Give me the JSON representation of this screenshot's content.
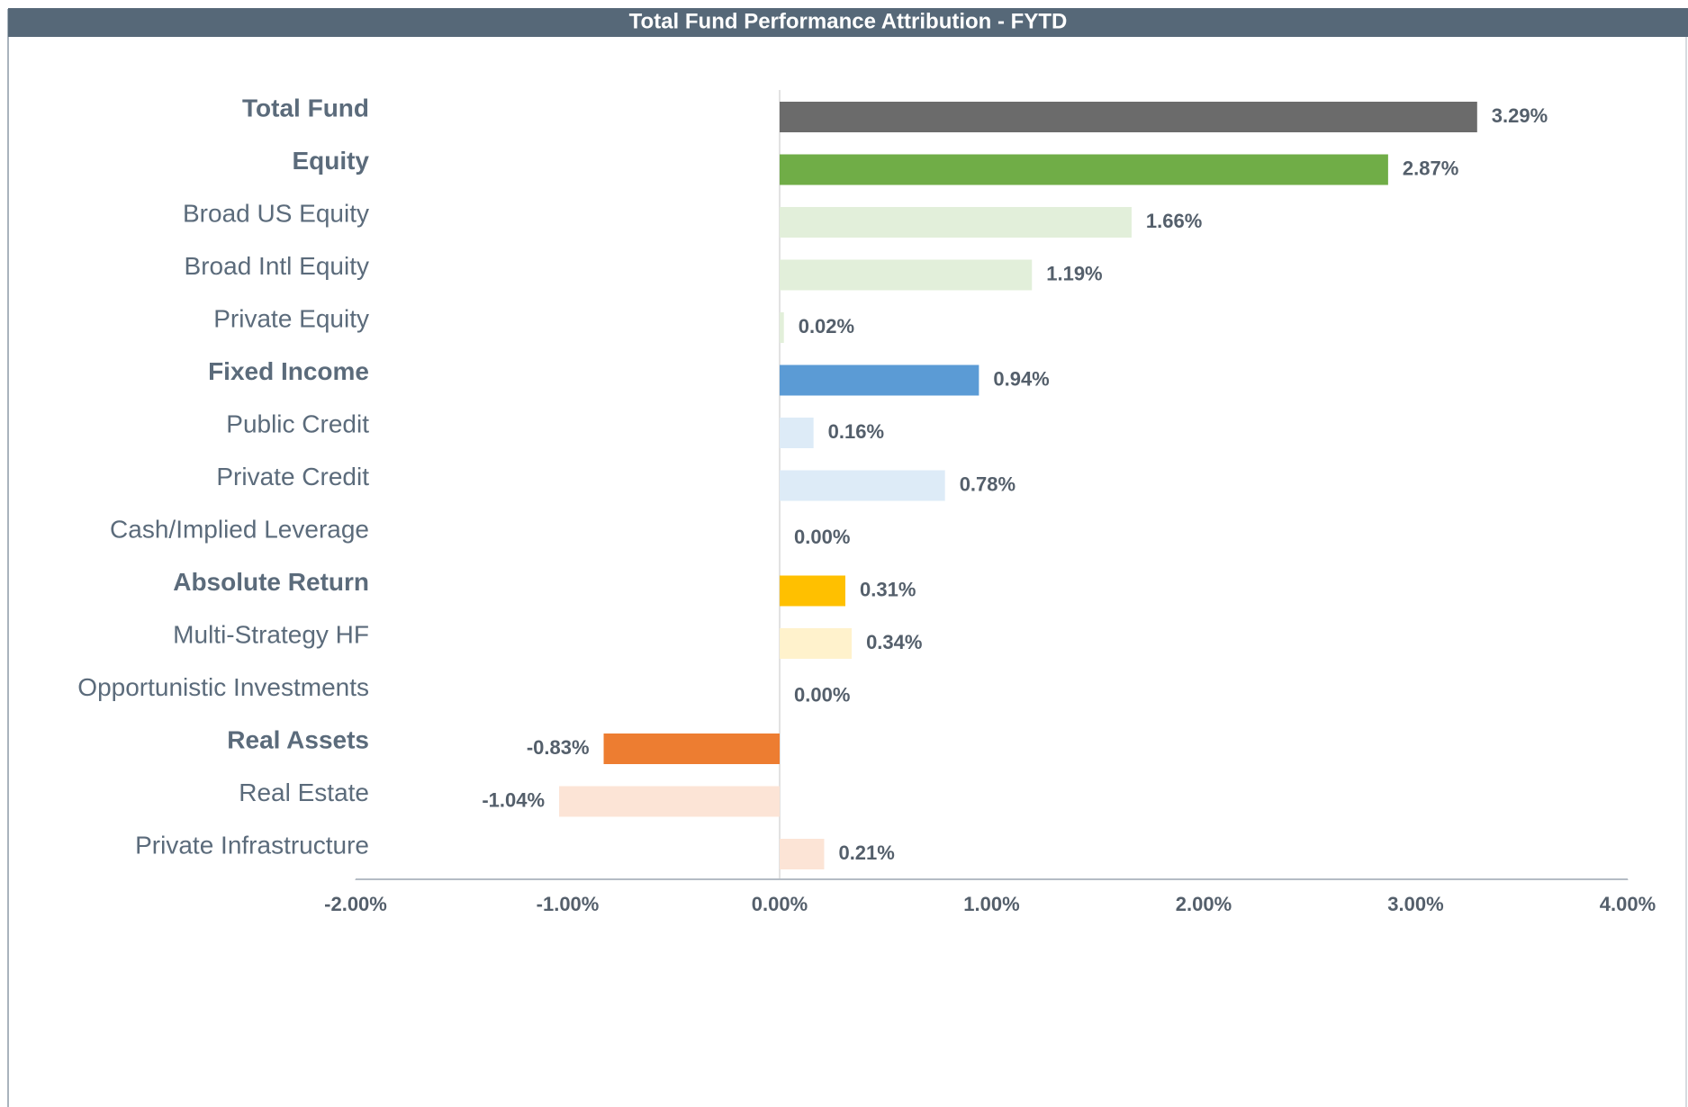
{
  "chart_data": {
    "type": "hbar",
    "title": "Total Fund Performance Attribution - FYTD",
    "categories": [
      "Total Fund",
      "Equity",
      "Broad US Equity",
      "Broad Intl Equity",
      "Private Equity",
      "Fixed Income",
      "Public Credit",
      "Private Credit",
      "Cash/Implied Leverage",
      "Absolute Return",
      "Multi-Strategy HF",
      "Opportunistic Investments",
      "Real Assets",
      "Real Estate",
      "Private Infrastructure"
    ],
    "bold": [
      true,
      true,
      false,
      false,
      false,
      true,
      false,
      false,
      false,
      true,
      false,
      false,
      true,
      false,
      false
    ],
    "values": [
      3.29,
      2.87,
      1.66,
      1.19,
      0.02,
      0.94,
      0.16,
      0.78,
      0.0,
      0.31,
      0.34,
      0.0,
      -0.83,
      -1.04,
      0.21
    ],
    "value_labels": [
      "3.29%",
      "2.87%",
      "1.66%",
      "1.19%",
      "0.02%",
      "0.94%",
      "0.16%",
      "0.78%",
      "0.00%",
      "0.31%",
      "0.34%",
      "0.00%",
      "-0.83%",
      "-1.04%",
      "0.21%"
    ],
    "colors": [
      "#6b6b6b",
      "#70ad47",
      "#e2efda",
      "#e2efda",
      "#e2efda",
      "#5b9bd5",
      "#ddebf7",
      "#ddebf7",
      "#ddebf7",
      "#ffc000",
      "#fff2cc",
      "#fff2cc",
      "#ed7d31",
      "#fce4d6",
      "#fce4d6"
    ],
    "xlim": [
      -2,
      4
    ],
    "xticks": [
      {
        "value": -2,
        "label": "-2.00%"
      },
      {
        "value": -1,
        "label": "-1.00%"
      },
      {
        "value": 0,
        "label": "0.00%"
      },
      {
        "value": 1,
        "label": "1.00%"
      },
      {
        "value": 2,
        "label": "2.00%"
      },
      {
        "value": 3,
        "label": "3.00%"
      },
      {
        "value": 4,
        "label": "4.00%"
      }
    ]
  }
}
